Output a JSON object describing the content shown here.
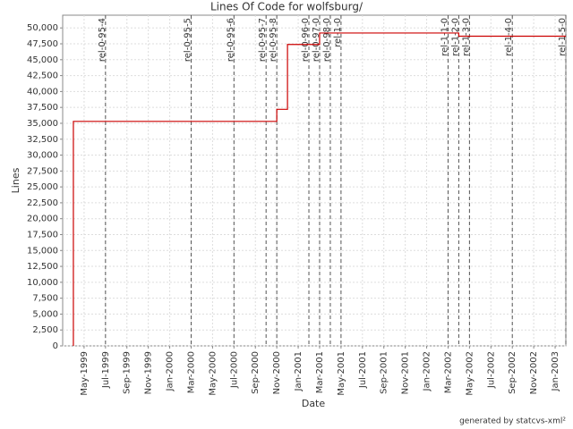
{
  "chart_data": {
    "type": "line",
    "title": "Lines Of Code for wolfsburg/",
    "x_label": "Date",
    "y_label": "Lines",
    "footer": "generated by statcvs-xml²",
    "x": [
      "1999-04",
      "2000-11",
      "2000-12",
      "2001-03",
      "2002-04",
      "2003-02"
    ],
    "series": [
      {
        "name": "Lines",
        "color": "#cc0000",
        "values": [
          35300,
          37200,
          47400,
          49200,
          48700,
          48700
        ]
      }
    ],
    "step": true,
    "xlim": [
      "1999-03",
      "2003-02"
    ],
    "xticks": [
      "1999-05",
      "1999-07",
      "1999-09",
      "1999-11",
      "2000-01",
      "2000-03",
      "2000-05",
      "2000-07",
      "2000-09",
      "2000-11",
      "2001-01",
      "2001-03",
      "2001-05",
      "2001-07",
      "2001-09",
      "2001-11",
      "2002-01",
      "2002-03",
      "2002-05",
      "2002-07",
      "2002-09",
      "2002-11",
      "2003-01"
    ],
    "xtick_labels": [
      "May-1999",
      "Jul-1999",
      "Sep-1999",
      "Nov-1999",
      "Jan-2000",
      "Mar-2000",
      "May-2000",
      "Jul-2000",
      "Sep-2000",
      "Nov-2000",
      "Jan-2001",
      "Mar-2001",
      "May-2001",
      "Jul-2001",
      "Sep-2001",
      "Nov-2001",
      "Jan-2002",
      "Mar-2002",
      "May-2002",
      "Jul-2002",
      "Sep-2002",
      "Nov-2002",
      "Jan-2003"
    ],
    "ylim": [
      0,
      52000
    ],
    "yticks": [
      0,
      {
        "value": 2500,
        "label": "2,500"
      },
      {
        "value": 5000,
        "label": "5,000"
      },
      {
        "value": 7500,
        "label": "7,500"
      },
      {
        "value": 10000,
        "label": "10,000"
      },
      {
        "value": 12500,
        "label": "12,500"
      },
      {
        "value": 15000,
        "label": "15,000"
      },
      {
        "value": 17500,
        "label": "17,500"
      },
      {
        "value": 20000,
        "label": "20,000"
      },
      {
        "value": 22500,
        "label": "22,500"
      },
      {
        "value": 25000,
        "label": "25,000"
      },
      {
        "value": 27500,
        "label": "27,500"
      },
      {
        "value": 30000,
        "label": "30,000"
      },
      {
        "value": 32500,
        "label": "32,500"
      },
      {
        "value": 35000,
        "label": "35,000"
      },
      {
        "value": 37500,
        "label": "37,500"
      },
      {
        "value": 40000,
        "label": "40,000"
      },
      {
        "value": 42500,
        "label": "42,500"
      },
      {
        "value": 45000,
        "label": "45,000"
      },
      {
        "value": 47500,
        "label": "47,500"
      },
      {
        "value": 50000,
        "label": "50,000"
      }
    ],
    "grid": true,
    "markers": [
      {
        "x": "1999-07",
        "label": "rel-0-95-4"
      },
      {
        "x": "2000-03",
        "label": "rel-0-95-5"
      },
      {
        "x": "2000-07",
        "label": "rel-0-95-6"
      },
      {
        "x": "2000-10",
        "label": "rel-0-95-7"
      },
      {
        "x": "2000-11",
        "label": "rel-0-95-8"
      },
      {
        "x": "2001-02",
        "label": "rel-0-96-0"
      },
      {
        "x": "2001-03",
        "label": "rel-0-97-0"
      },
      {
        "x": "2001-04",
        "label": "rel-0-98-0"
      },
      {
        "x": "2001-05",
        "label": "rel-1-0"
      },
      {
        "x": "2002-03",
        "label": "rel-1-1-0"
      },
      {
        "x": "2002-04",
        "label": "rel-1-2-0"
      },
      {
        "x": "2002-05",
        "label": "rel-1-3-0"
      },
      {
        "x": "2002-09",
        "label": "rel-1-4-0"
      },
      {
        "x": "2003-02",
        "label": "rel-1-5-0"
      }
    ]
  }
}
